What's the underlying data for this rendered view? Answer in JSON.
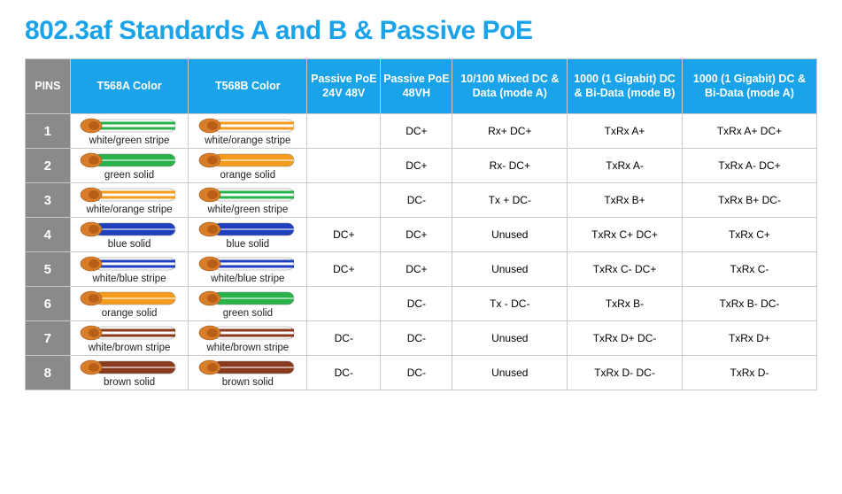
{
  "title": "802.3af Standards A and B & Passive PoE",
  "title_color": "#1aa3e8",
  "title_fontsize": 30,
  "header_bg_blue": "#1aa3e8",
  "header_bg_grey": "#8a8a8a",
  "pin_bg_grey": "#8a8a8a",
  "border_color": "#c9c9c9",
  "wire_colors": {
    "green": "#29b24a",
    "orange": "#f59b1c",
    "blue": "#1f3fbf",
    "brown": "#8a3a1c",
    "white": "#ffffff",
    "tip": "#d97d2a",
    "outline": "#888888"
  },
  "columns": [
    {
      "key": "pin",
      "label": "PINS",
      "bg": "grey",
      "cls": "c-pin"
    },
    {
      "key": "t568a",
      "label": "T568A Color",
      "bg": "blue",
      "cls": "c-color"
    },
    {
      "key": "t568b",
      "label": "T568B Color",
      "bg": "blue",
      "cls": "c-color"
    },
    {
      "key": "poe24",
      "label": "Passive PoE 24V 48V",
      "bg": "blue",
      "cls": "c-p24"
    },
    {
      "key": "poe48vh",
      "label": "Passive PoE 48VH",
      "bg": "blue",
      "cls": "c-p48"
    },
    {
      "key": "modeA10",
      "label": "10/100 Mixed DC & Data (mode A)",
      "bg": "blue",
      "cls": "c-10"
    },
    {
      "key": "modeB1G",
      "label": "1000 (1 Gigabit) DC & Bi-Data (mode B)",
      "bg": "blue",
      "cls": "c-gb"
    },
    {
      "key": "modeA1G",
      "label": "1000 (1 Gigabit) DC & Bi-Data (mode A)",
      "bg": "blue",
      "cls": "c-ga"
    }
  ],
  "rows": [
    {
      "pin": "1",
      "t568a": {
        "style": "stripe",
        "color": "green",
        "label": "white/green stripe"
      },
      "t568b": {
        "style": "stripe",
        "color": "orange",
        "label": "white/orange stripe"
      },
      "poe24": "",
      "poe48vh": "DC+",
      "modeA10": "Rx+   DC+",
      "modeB1G": "TxRx A+",
      "modeA1G": "TxRx A+  DC+"
    },
    {
      "pin": "2",
      "t568a": {
        "style": "solid",
        "color": "green",
        "label": "green solid"
      },
      "t568b": {
        "style": "solid",
        "color": "orange",
        "label": "orange solid"
      },
      "poe24": "",
      "poe48vh": "DC+",
      "modeA10": "Rx-  DC+",
      "modeB1G": "TxRx A-",
      "modeA1G": "TxRx A-  DC+"
    },
    {
      "pin": "3",
      "t568a": {
        "style": "stripe",
        "color": "orange",
        "label": "white/orange stripe"
      },
      "t568b": {
        "style": "stripe",
        "color": "green",
        "label": "white/green stripe"
      },
      "poe24": "",
      "poe48vh": "DC-",
      "modeA10": "Tx +  DC-",
      "modeB1G": "TxRx B+",
      "modeA1G": "TxRx B+  DC-"
    },
    {
      "pin": "4",
      "t568a": {
        "style": "solid",
        "color": "blue",
        "label": "blue solid"
      },
      "t568b": {
        "style": "solid",
        "color": "blue",
        "label": "blue solid"
      },
      "poe24": "DC+",
      "poe48vh": "DC+",
      "modeA10": "Unused",
      "modeB1G": "TxRx C+  DC+",
      "modeA1G": "TxRx C+"
    },
    {
      "pin": "5",
      "t568a": {
        "style": "stripe",
        "color": "blue",
        "label": "white/blue stripe"
      },
      "t568b": {
        "style": "stripe",
        "color": "blue",
        "label": "white/blue stripe"
      },
      "poe24": "DC+",
      "poe48vh": "DC+",
      "modeA10": "Unused",
      "modeB1G": "TxRx C-  DC+",
      "modeA1G": "TxRx C-"
    },
    {
      "pin": "6",
      "t568a": {
        "style": "solid",
        "color": "orange",
        "label": "orange solid"
      },
      "t568b": {
        "style": "solid",
        "color": "green",
        "label": "green solid"
      },
      "poe24": "",
      "poe48vh": "DC-",
      "modeA10": "Tx -  DC-",
      "modeB1G": "TxRx B-",
      "modeA1G": "TxRx B-  DC-"
    },
    {
      "pin": "7",
      "t568a": {
        "style": "stripe",
        "color": "brown",
        "label": "white/brown stripe"
      },
      "t568b": {
        "style": "stripe",
        "color": "brown",
        "label": "white/brown stripe"
      },
      "poe24": "DC-",
      "poe48vh": "DC-",
      "modeA10": "Unused",
      "modeB1G": "TxRx D+  DC-",
      "modeA1G": "TxRx D+"
    },
    {
      "pin": "8",
      "t568a": {
        "style": "solid",
        "color": "brown",
        "label": "brown solid"
      },
      "t568b": {
        "style": "solid",
        "color": "brown",
        "label": "brown solid"
      },
      "poe24": "DC-",
      "poe48vh": "DC-",
      "modeA10": "Unused",
      "modeB1G": "TxRx D-  DC-",
      "modeA1G": "TxRx D-"
    }
  ]
}
